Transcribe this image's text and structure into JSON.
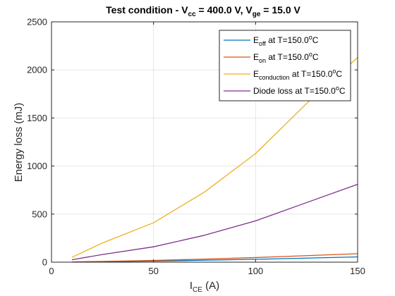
{
  "chart_data": {
    "type": "line",
    "title": {
      "prefix": "Test condition -  V",
      "sub1": "cc",
      "mid": " = 400.0 V, V",
      "sub2": "ge",
      "suffix": " = 15.0 V"
    },
    "xlabel": {
      "main": "I",
      "sub": "CE",
      "rest": " (A)"
    },
    "ylabel": "Energy loss (mJ)",
    "xlim": [
      0,
      150
    ],
    "ylim": [
      0,
      2500
    ],
    "xticks": [
      0,
      50,
      100,
      150
    ],
    "yticks": [
      0,
      500,
      1000,
      1500,
      2000,
      2500
    ],
    "grid": true,
    "legend_position": "top-right",
    "series": [
      {
        "name": {
          "base": "E",
          "sub": "off",
          "rest": " at T=150.0",
          "sup": "o",
          "unit": "C"
        },
        "color": "#0072bd",
        "x": [
          10,
          25,
          50,
          75,
          100,
          125,
          150
        ],
        "y": [
          2,
          5,
          12,
          20,
          30,
          42,
          55
        ]
      },
      {
        "name": {
          "base": "E",
          "sub": "on",
          "rest": " at T=150.0",
          "sup": "o",
          "unit": "C"
        },
        "color": "#d95319",
        "x": [
          10,
          25,
          50,
          75,
          100,
          125,
          150
        ],
        "y": [
          3,
          8,
          18,
          32,
          48,
          68,
          88
        ]
      },
      {
        "name": {
          "base": "E",
          "sub": "conduction",
          "rest": " at T=150.0",
          "sup": "o",
          "unit": "C"
        },
        "color": "#edb120",
        "x": [
          10,
          25,
          50,
          75,
          100,
          125,
          150
        ],
        "y": [
          50,
          200,
          410,
          730,
          1130,
          1650,
          2130
        ]
      },
      {
        "name": {
          "base": "Diode loss at T=150.0",
          "sub": "",
          "rest": "",
          "sup": "o",
          "unit": "C"
        },
        "color": "#7e2f8e",
        "x": [
          10,
          25,
          50,
          75,
          100,
          125,
          150
        ],
        "y": [
          25,
          80,
          160,
          280,
          430,
          620,
          810
        ]
      }
    ]
  }
}
